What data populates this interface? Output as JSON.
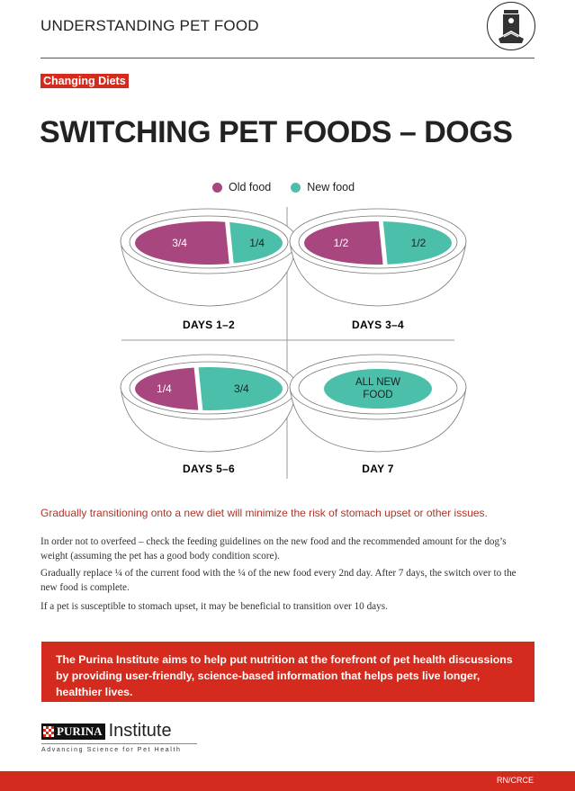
{
  "header": {
    "series_title": "UNDERSTANDING PET FOOD",
    "icon": "pet-food-bag-icon",
    "category_tag": "Changing Diets"
  },
  "title": "SWITCHING PET FOODS – DOGS",
  "legend": {
    "old_food": {
      "label": "Old food",
      "color": "#a8467f"
    },
    "new_food": {
      "label": "New food",
      "color": "#4bbfa9"
    }
  },
  "bowls": [
    {
      "day_label": "DAYS 1–2",
      "old_label": "3/4",
      "new_label": "1/4",
      "old_fraction": 0.75
    },
    {
      "day_label": "DAYS 3–4",
      "old_label": "1/2",
      "new_label": "1/2",
      "old_fraction": 0.5
    },
    {
      "day_label": "DAYS 5–6",
      "old_label": "1/4",
      "new_label": "3/4",
      "old_fraction": 0.25
    },
    {
      "day_label": "DAY 7",
      "new_label_line1": "ALL NEW",
      "new_label_line2": "FOOD",
      "old_fraction": 0
    }
  ],
  "lead": "Gradually transitioning onto a new diet will minimize the risk of stomach upset or other issues.",
  "paragraphs": [
    "In order not to overfeed – check the feeding guidelines on the new food and the recommended amount for the dog’s weight (assuming the pet has a good body condition score).",
    "Gradually replace ¼ of the current food with the ¼ of the new food every 2nd day. After 7 days, the switch over to the new food is complete.",
    "If a pet is susceptible to stomach upset, it may be beneficial to transition over 10 days."
  ],
  "banner": "The Purina Institute aims to help put nutrition at the forefront of pet health discussions by providing user-friendly, science-based information that helps pets live longer, healthier lives.",
  "logo": {
    "brand": "PURINA",
    "name": "Institute",
    "tagline": "Advancing Science for Pet Health"
  },
  "footer": {
    "code": "RN/CRCE"
  },
  "colors": {
    "accent_red": "#d52b1e"
  }
}
